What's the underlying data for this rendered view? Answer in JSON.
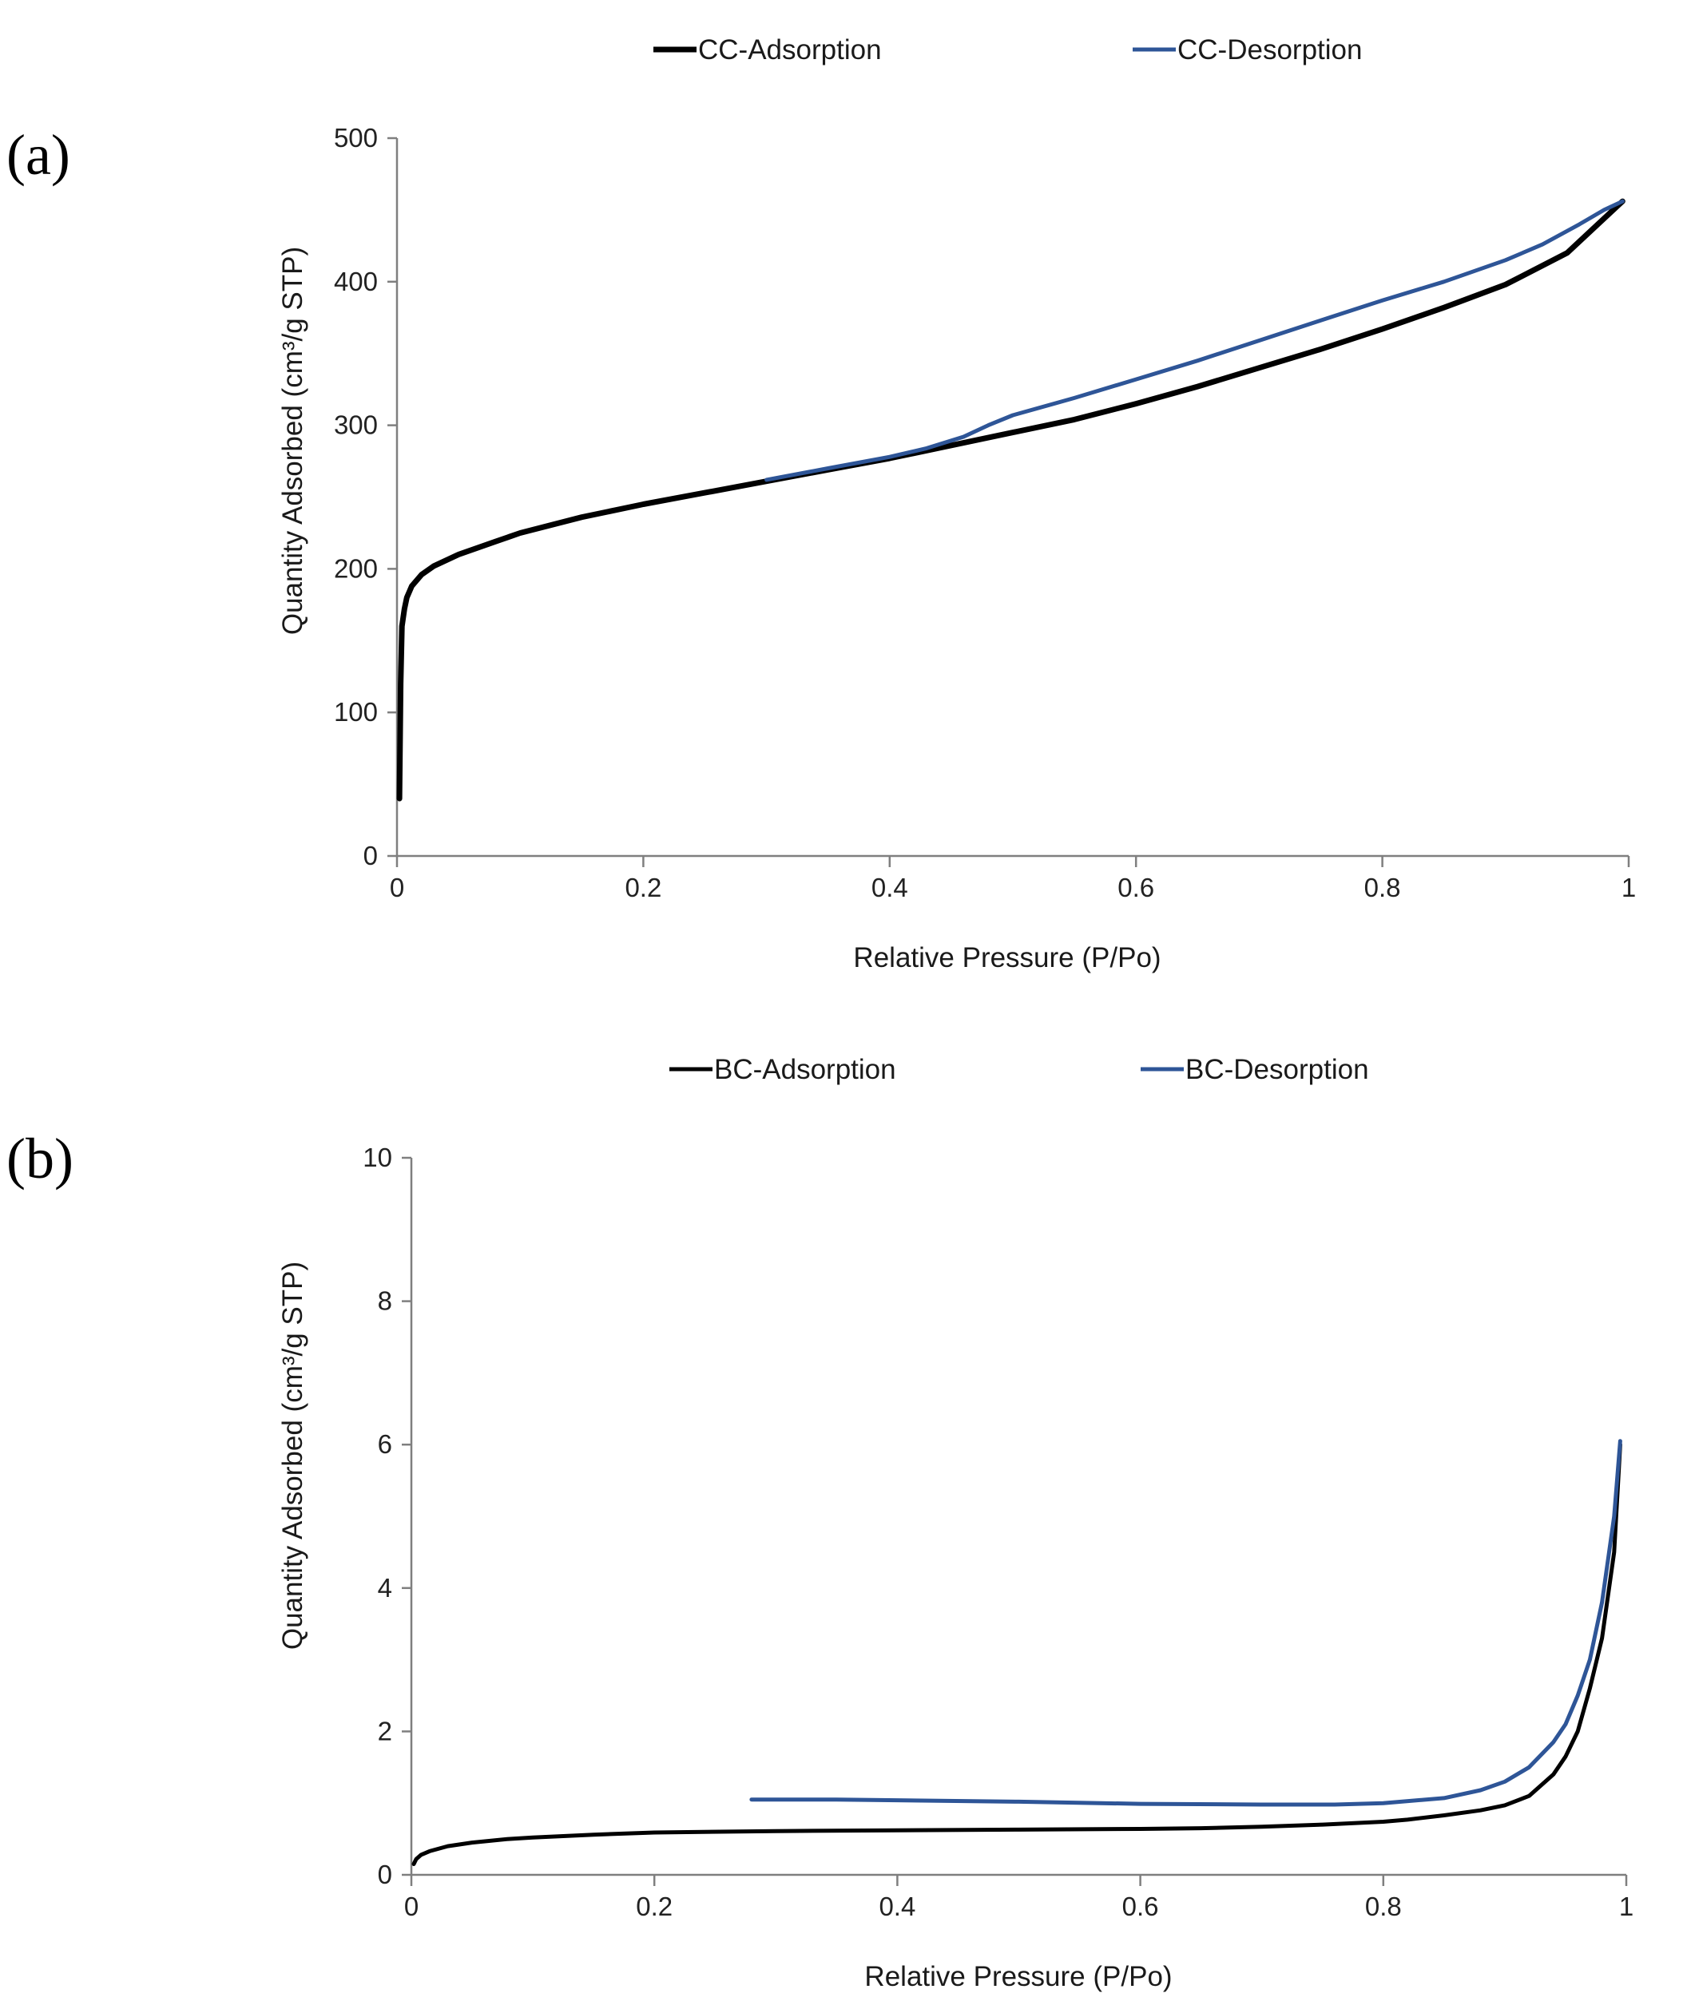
{
  "chart_data": [
    {
      "type": "line",
      "panel_label": "(a)",
      "xlabel": "Relative Pressure (P/Po)",
      "ylabel": "Quantity Adsorbed (cm³/g STP)",
      "xlim": [
        0,
        1
      ],
      "ylim": [
        0,
        500
      ],
      "xticks": [
        0,
        0.2,
        0.4,
        0.6,
        0.8,
        1
      ],
      "xtick_labels": [
        "0",
        "0.2",
        "0.4",
        "0.6",
        "0.8",
        "1"
      ],
      "yticks": [
        0,
        100,
        200,
        300,
        400,
        500
      ],
      "ytick_labels": [
        "0",
        "100",
        "200",
        "300",
        "400",
        "500"
      ],
      "grid": false,
      "legend_position": "top",
      "series": [
        {
          "name": "CC-Adsorption",
          "color": "#000000",
          "x": [
            0.002,
            0.003,
            0.004,
            0.006,
            0.008,
            0.012,
            0.02,
            0.03,
            0.05,
            0.08,
            0.1,
            0.15,
            0.2,
            0.25,
            0.3,
            0.35,
            0.4,
            0.45,
            0.5,
            0.55,
            0.6,
            0.65,
            0.7,
            0.75,
            0.8,
            0.85,
            0.9,
            0.95,
            0.97,
            0.995
          ],
          "y": [
            40,
            120,
            160,
            172,
            180,
            188,
            196,
            202,
            210,
            219,
            225,
            236,
            245,
            253,
            261,
            269,
            277,
            286,
            295,
            304,
            315,
            327,
            340,
            353,
            367,
            382,
            398,
            420,
            436,
            456
          ]
        },
        {
          "name": "CC-Desorption",
          "color": "#2E5597",
          "x": [
            0.3,
            0.35,
            0.4,
            0.43,
            0.46,
            0.48,
            0.5,
            0.55,
            0.6,
            0.65,
            0.7,
            0.75,
            0.8,
            0.85,
            0.9,
            0.93,
            0.96,
            0.98,
            0.995
          ],
          "y": [
            262,
            270,
            278,
            284,
            292,
            300,
            307,
            319,
            332,
            345,
            359,
            373,
            387,
            400,
            415,
            426,
            440,
            450,
            456
          ]
        }
      ]
    },
    {
      "type": "line",
      "panel_label": "(b)",
      "xlabel": "Relative Pressure (P/Po)",
      "ylabel": "Quantity Adsorbed (cm³/g STP)",
      "xlim": [
        0,
        1
      ],
      "ylim": [
        0,
        10
      ],
      "xticks": [
        0,
        0.2,
        0.4,
        0.6,
        0.8,
        1
      ],
      "xtick_labels": [
        "0",
        "0.2",
        "0.4",
        "0.6",
        "0.8",
        "1"
      ],
      "yticks": [
        0,
        2,
        4,
        6,
        8,
        10
      ],
      "ytick_labels": [
        "0",
        "2",
        "4",
        "6",
        "8",
        "10"
      ],
      "grid": false,
      "legend_position": "top",
      "series": [
        {
          "name": "BC-Adsorption",
          "color": "#000000",
          "x": [
            0.002,
            0.004,
            0.008,
            0.015,
            0.03,
            0.05,
            0.08,
            0.1,
            0.15,
            0.2,
            0.3,
            0.4,
            0.5,
            0.6,
            0.65,
            0.7,
            0.75,
            0.8,
            0.82,
            0.85,
            0.88,
            0.9,
            0.92,
            0.94,
            0.95,
            0.96,
            0.97,
            0.98,
            0.99,
            0.995
          ],
          "y": [
            0.15,
            0.22,
            0.28,
            0.33,
            0.4,
            0.45,
            0.5,
            0.52,
            0.56,
            0.59,
            0.61,
            0.62,
            0.63,
            0.64,
            0.65,
            0.67,
            0.7,
            0.74,
            0.77,
            0.83,
            0.9,
            0.97,
            1.1,
            1.4,
            1.65,
            2.0,
            2.6,
            3.3,
            4.5,
            6.0
          ]
        },
        {
          "name": "BC-Desorption",
          "color": "#2E5597",
          "x": [
            0.28,
            0.35,
            0.4,
            0.5,
            0.6,
            0.7,
            0.76,
            0.8,
            0.85,
            0.88,
            0.9,
            0.92,
            0.94,
            0.95,
            0.96,
            0.97,
            0.98,
            0.99,
            0.995
          ],
          "y": [
            1.05,
            1.05,
            1.04,
            1.02,
            0.99,
            0.98,
            0.98,
            1.0,
            1.07,
            1.18,
            1.3,
            1.5,
            1.85,
            2.1,
            2.5,
            3.0,
            3.8,
            5.0,
            6.05
          ]
        }
      ]
    }
  ]
}
